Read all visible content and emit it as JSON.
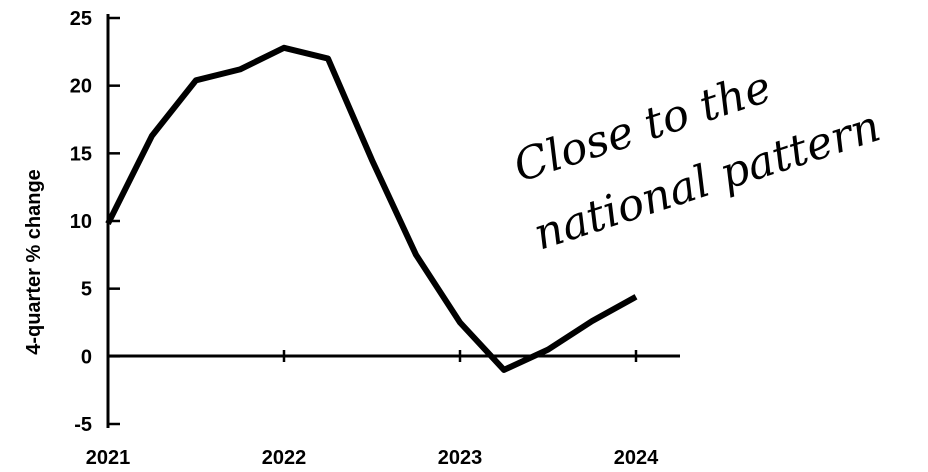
{
  "chart_data": {
    "type": "line",
    "title": "",
    "xlabel": "",
    "ylabel": "4-quarter % change",
    "xlim": [
      2021,
      2024
    ],
    "ylim": [
      -5,
      25
    ],
    "y_ticks": [
      -5,
      0,
      5,
      10,
      15,
      20,
      25
    ],
    "x_ticks": [
      2021,
      2022,
      2023,
      2024
    ],
    "x_tick_labels": [
      "2021",
      "2022",
      "2023",
      "2024"
    ],
    "grid": false,
    "legend": "none",
    "series": [
      {
        "color": "#000000",
        "x": [
          2021.0,
          2021.25,
          2021.5,
          2021.75,
          2022.0,
          2022.25,
          2022.5,
          2022.75,
          2023.0,
          2023.25,
          2023.5,
          2023.75,
          2024.0
        ],
        "values": [
          9.8,
          16.3,
          20.4,
          21.2,
          22.8,
          22.0,
          14.5,
          7.5,
          2.5,
          -1.0,
          0.5,
          2.6,
          4.4
        ]
      }
    ],
    "annotations": [
      {
        "lines": [
          "Close to the",
          "national pattern"
        ],
        "style": "handwritten"
      }
    ]
  }
}
